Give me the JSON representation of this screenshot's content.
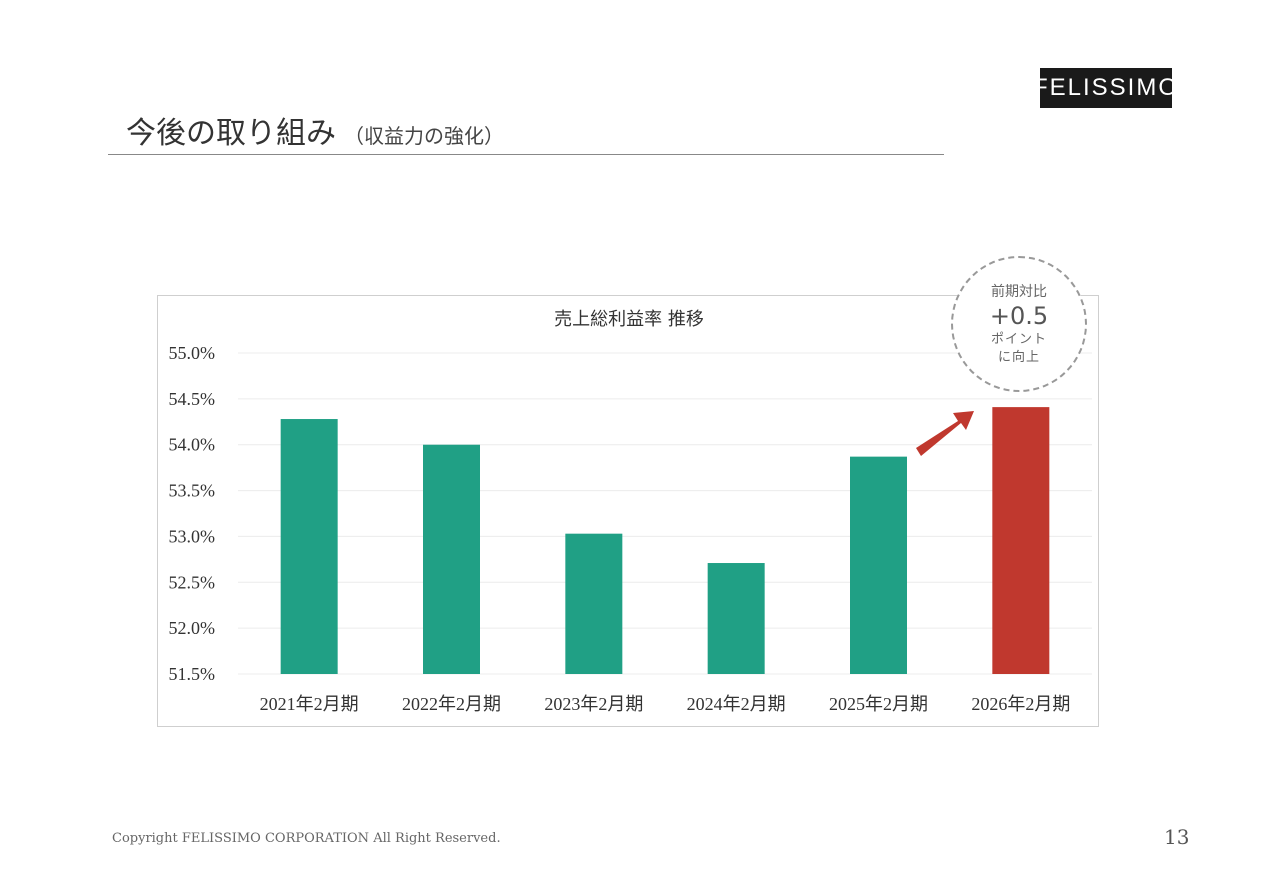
{
  "logo": {
    "text": "FELISSIMO"
  },
  "page": {
    "title": "今後の取り組み",
    "subtitle": "（収益力の強化）",
    "footer": "Copyright FELISSIMO CORPORATION All Right Reserved.",
    "page_number": "13"
  },
  "annotation": {
    "line1": "前期対比",
    "big": "+0.5",
    "line2": "ポイント",
    "line3": "に向上"
  },
  "colors": {
    "bar_default": "#20a085",
    "bar_highlight": "#c0382e",
    "arrow": "#c0382e"
  },
  "chart_data": {
    "type": "bar",
    "title": "売上総利益率 推移",
    "categories": [
      "2021年2月期",
      "2022年2月期",
      "2023年2月期",
      "2024年2月期",
      "2025年2月期",
      "2026年2月期"
    ],
    "values": [
      54.28,
      54.0,
      53.03,
      52.71,
      53.87,
      54.41
    ],
    "highlight_index": 5,
    "ylim": [
      51.5,
      55.0
    ],
    "yticks": [
      55.0,
      54.5,
      54.0,
      53.5,
      53.0,
      52.5,
      52.0,
      51.5
    ],
    "ytick_labels": [
      "55.0%",
      "54.5%",
      "54.0%",
      "53.5%",
      "53.0%",
      "52.5%",
      "52.0%",
      "51.5%"
    ],
    "xlabel": "",
    "ylabel": "",
    "grid": true,
    "legend": "none"
  }
}
